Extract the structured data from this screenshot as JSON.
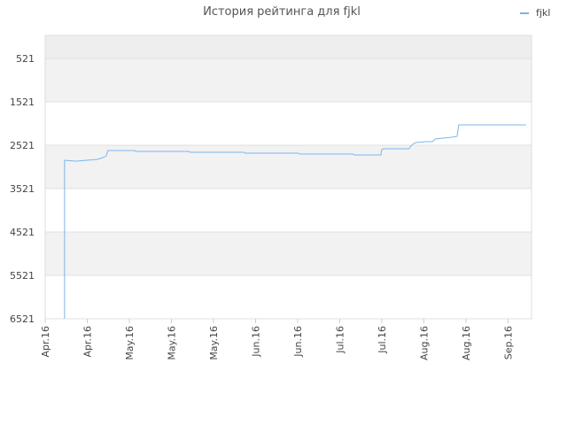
{
  "chart_data": {
    "type": "line",
    "title": "История рейтинга для fjkl",
    "xlim": [
      0,
      11.56
    ],
    "xticks": [
      {
        "value": 0,
        "label": "Apr.16"
      },
      {
        "value": 1,
        "label": "Apr.16"
      },
      {
        "value": 2,
        "label": "May.16"
      },
      {
        "value": 3,
        "label": "May.16"
      },
      {
        "value": 4,
        "label": "May.16"
      },
      {
        "value": 5,
        "label": "Jun.16"
      },
      {
        "value": 6,
        "label": "Jun.16"
      },
      {
        "value": 7,
        "label": "Jul.16"
      },
      {
        "value": 8,
        "label": "Jul.16"
      },
      {
        "value": 9,
        "label": "Aug.16"
      },
      {
        "value": 10,
        "label": "Aug.16"
      },
      {
        "value": 11,
        "label": "Sep.16"
      }
    ],
    "ylim": [
      6521,
      -10
    ],
    "yticks": [
      521,
      1521,
      2521,
      3521,
      4521,
      5521,
      6521
    ],
    "grid": true,
    "legend": "top-right",
    "series": [
      {
        "name": "fjkl",
        "color": "#7cb5ec",
        "x": [
          0.46,
          0.46,
          0.72,
          0.99,
          1.24,
          1.37,
          1.45,
          1.49,
          2.13,
          2.15,
          3.41,
          3.45,
          4.72,
          4.76,
          6.02,
          6.06,
          7.31,
          7.35,
          7.98,
          8.0,
          8.04,
          8.65,
          8.69,
          8.76,
          8.82,
          9.03,
          9.2,
          9.28,
          9.45,
          9.66,
          9.79,
          9.83,
          11.43
        ],
        "values": [
          6521,
          2868,
          2888,
          2868,
          2848,
          2807,
          2766,
          2643,
          2643,
          2664,
          2664,
          2684,
          2684,
          2705,
          2705,
          2725,
          2725,
          2745,
          2745,
          2623,
          2603,
          2603,
          2541,
          2480,
          2460,
          2439,
          2439,
          2378,
          2357,
          2337,
          2316,
          2052,
          2052
        ]
      }
    ]
  }
}
